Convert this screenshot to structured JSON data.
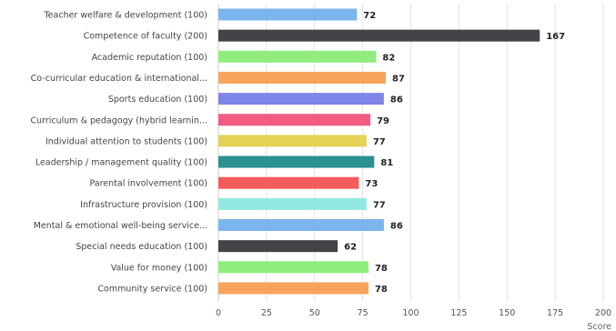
{
  "chart_data": {
    "type": "bar",
    "orientation": "horizontal",
    "categories": [
      "Teacher welfare & development (100)",
      "Competence of faculty (200)",
      "Academic reputation (100)",
      "Co-curricular education & international...",
      "Sports education (100)",
      "Curriculum & pedagogy (hybrid learnin...",
      "Individual attention to students (100)",
      "Leadership / management quality (100)",
      "Parental involvement (100)",
      "Infrastructure provision (100)",
      "Mental & emotional well-being service...",
      "Special needs education (100)",
      "Value for money (100)",
      "Community service (100)"
    ],
    "values": [
      72,
      167,
      82,
      87,
      86,
      79,
      77,
      81,
      73,
      77,
      86,
      62,
      78,
      78
    ],
    "value_labels": [
      "72",
      "167",
      "82",
      "87",
      "86",
      "79",
      "77",
      "81",
      "73",
      "77",
      "86",
      "62",
      "78",
      "78"
    ],
    "colors": [
      "#7cb5ec",
      "#434348",
      "#90ed7d",
      "#f7a35c",
      "#8085e9",
      "#f15c80",
      "#e4d354",
      "#2b908f",
      "#f45b5b",
      "#91e8e1",
      "#7cb5ec",
      "#434348",
      "#90ed7d",
      "#f7a35c"
    ],
    "xlim": [
      0,
      200
    ],
    "xticks": [
      0,
      25,
      50,
      75,
      100,
      125,
      150,
      175,
      200
    ],
    "xlabel": "Score",
    "grid": true
  }
}
